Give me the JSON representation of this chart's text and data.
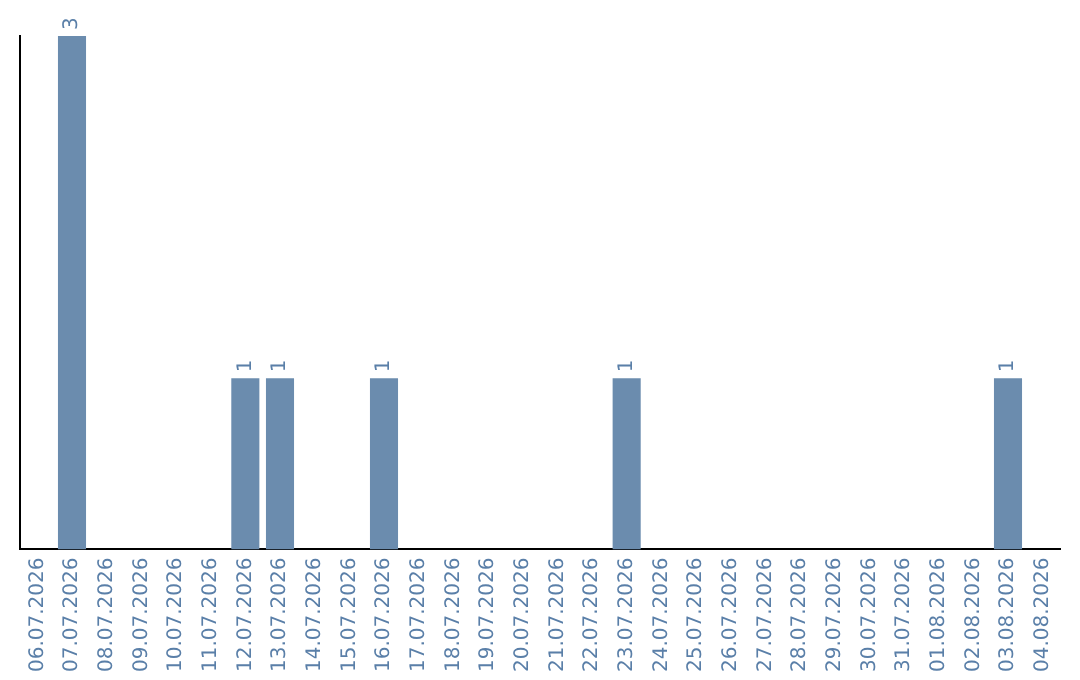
{
  "chart_data": {
    "type": "bar",
    "categories": [
      "06.07.2026",
      "07.07.2026",
      "08.07.2026",
      "09.07.2026",
      "10.07.2026",
      "11.07.2026",
      "12.07.2026",
      "13.07.2026",
      "14.07.2026",
      "15.07.2026",
      "16.07.2026",
      "17.07.2026",
      "18.07.2026",
      "19.07.2026",
      "20.07.2026",
      "21.07.2026",
      "22.07.2026",
      "23.07.2026",
      "24.07.2026",
      "25.07.2026",
      "26.07.2026",
      "27.07.2026",
      "28.07.2026",
      "29.07.2026",
      "30.07.2026",
      "31.07.2026",
      "01.08.2026",
      "02.08.2026",
      "03.08.2026",
      "04.08.2026"
    ],
    "values": [
      0,
      3,
      0,
      0,
      0,
      0,
      1,
      1,
      0,
      0,
      1,
      0,
      0,
      0,
      0,
      0,
      0,
      1,
      0,
      0,
      0,
      0,
      0,
      0,
      0,
      0,
      0,
      0,
      1,
      0
    ],
    "value_labels": [
      null,
      "3",
      null,
      null,
      null,
      null,
      "1",
      "1",
      null,
      null,
      "1",
      null,
      null,
      null,
      null,
      null,
      null,
      "1",
      null,
      null,
      null,
      null,
      null,
      null,
      null,
      null,
      null,
      null,
      "1",
      null
    ],
    "color": "#6b8cae",
    "grid": false,
    "legend": false,
    "tick_labels": "x"
  }
}
